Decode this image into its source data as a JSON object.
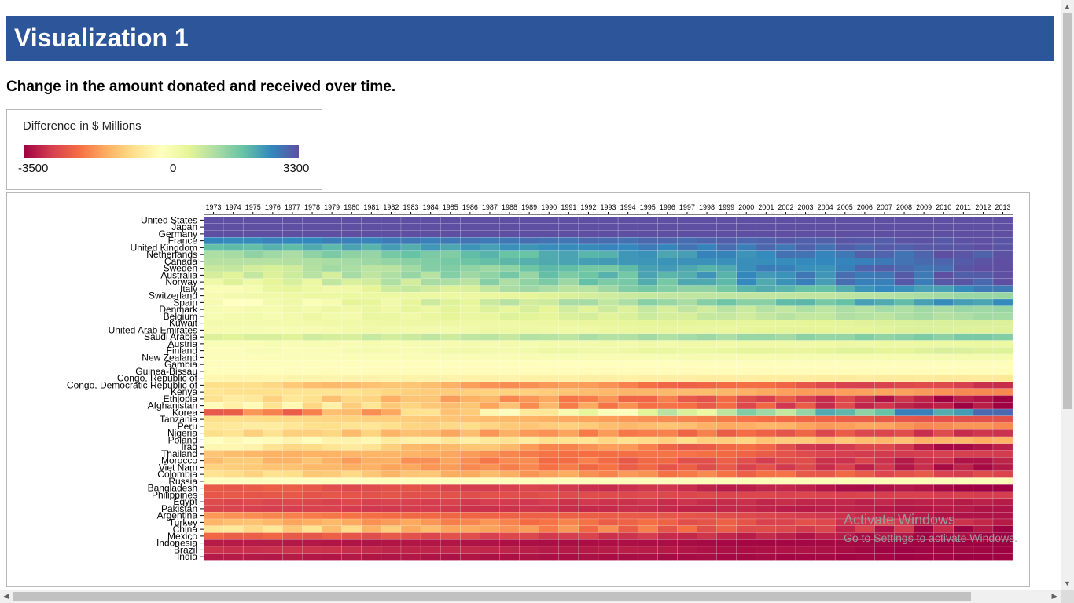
{
  "header": {
    "title": "Visualization 1"
  },
  "subtitle": "Change in the amount donated and received over time.",
  "legend": {
    "title": "Difference in $ Millions",
    "min_label": "-3500",
    "mid_label": "0",
    "max_label": "3300"
  },
  "colors": {
    "header_bg": "#2c5699",
    "scale": [
      "#9e0142",
      "#d53e4f",
      "#f46d43",
      "#fdae61",
      "#fee08b",
      "#ffffbf",
      "#e6f598",
      "#abdda4",
      "#66c2a5",
      "#3288bd",
      "#5e4fa2"
    ]
  },
  "watermark": {
    "line1": "Activate Windows",
    "line2": "Go to Settings to activate Windows."
  },
  "chart_data": {
    "type": "heatmap",
    "title": "",
    "xlabel": "",
    "ylabel": "",
    "value_range": [
      -3500,
      3300
    ],
    "x": [
      "1973",
      "1974",
      "1975",
      "1976",
      "1977",
      "1978",
      "1979",
      "1980",
      "1981",
      "1982",
      "1983",
      "1984",
      "1985",
      "1986",
      "1987",
      "1988",
      "1989",
      "1990",
      "1991",
      "1992",
      "1993",
      "1994",
      "1995",
      "1996",
      "1997",
      "1998",
      "1999",
      "2000",
      "2001",
      "2002",
      "2003",
      "2004",
      "2005",
      "2006",
      "2007",
      "2008",
      "2009",
      "2010",
      "2011",
      "2012",
      "2013"
    ],
    "y": [
      "United States",
      "Japan",
      "Germany",
      "France",
      "United Kingdom",
      "Netherlands",
      "Canada",
      "Sweden",
      "Australia",
      "Norway",
      "Italy",
      "Switzerland",
      "Spain",
      "Denmark",
      "Belgium",
      "Kuwait",
      "United Arab Emirates",
      "Saudi Arabia",
      "Austria",
      "Finland",
      "New Zealand",
      "Gambia",
      "Guinea-Bissau",
      "Congo, Republic of",
      "Congo, Democratic Republic of",
      "Kenya",
      "Ethiopia",
      "Afghanistan",
      "Korea",
      "Tanzania",
      "Peru",
      "Nigeria",
      "Poland",
      "Iraq",
      "Thailand",
      "Morocco",
      "Viet Nam",
      "Colombia",
      "Russia",
      "Bangladesh",
      "Philippines",
      "Egypt",
      "Pakistan",
      "Argentina",
      "Turkey",
      "China",
      "Mexico",
      "Indonesia",
      "Brazil",
      "India"
    ],
    "row_profiles": [
      {
        "country": "United States",
        "early": 3300,
        "late": 3300
      },
      {
        "country": "Japan",
        "early": 3300,
        "late": 3300
      },
      {
        "country": "Germany",
        "early": 3300,
        "late": 3300
      },
      {
        "country": "France",
        "early": 2600,
        "late": 3300
      },
      {
        "country": "United Kingdom",
        "early": 2000,
        "late": 3300
      },
      {
        "country": "Netherlands",
        "early": 1300,
        "late": 3300
      },
      {
        "country": "Canada",
        "early": 1200,
        "late": 3300
      },
      {
        "country": "Sweden",
        "early": 800,
        "late": 3300
      },
      {
        "country": "Australia",
        "early": 700,
        "late": 3300
      },
      {
        "country": "Norway",
        "early": 400,
        "late": 3300
      },
      {
        "country": "Italy",
        "early": 150,
        "late": 2800
      },
      {
        "country": "Switzerland",
        "early": 200,
        "late": 1500
      },
      {
        "country": "Spain",
        "early": 0,
        "late": 2600
      },
      {
        "country": "Denmark",
        "early": 200,
        "late": 1500
      },
      {
        "country": "Belgium",
        "early": 200,
        "late": 1400
      },
      {
        "country": "Kuwait",
        "early": 300,
        "late": 800
      },
      {
        "country": "United Arab Emirates",
        "early": 200,
        "late": 800
      },
      {
        "country": "Saudi Arabia",
        "early": 700,
        "late": 1800
      },
      {
        "country": "Austria",
        "early": 150,
        "late": 500
      },
      {
        "country": "Finland",
        "early": 100,
        "late": 800
      },
      {
        "country": "New Zealand",
        "early": 100,
        "late": 300
      },
      {
        "country": "Gambia",
        "early": -50,
        "late": -50
      },
      {
        "country": "Guinea-Bissau",
        "early": -50,
        "late": -100
      },
      {
        "country": "Congo, Republic of",
        "early": -200,
        "late": -500
      },
      {
        "country": "Congo, Democratic Republic of",
        "early": -700,
        "late": -3000
      },
      {
        "country": "Kenya",
        "early": -500,
        "late": -1800
      },
      {
        "country": "Ethiopia",
        "early": -400,
        "late": -3500
      },
      {
        "country": "Afghanistan",
        "early": -100,
        "late": -3500
      },
      {
        "country": "Korea",
        "early": -2400,
        "late": 3000
      },
      {
        "country": "Tanzania",
        "early": -700,
        "late": -2500
      },
      {
        "country": "Peru",
        "early": -400,
        "late": -1800
      },
      {
        "country": "Nigeria",
        "early": -600,
        "late": -3000
      },
      {
        "country": "Poland",
        "early": 0,
        "late": -1400
      },
      {
        "country": "Iraq",
        "early": -200,
        "late": -3400
      },
      {
        "country": "Thailand",
        "early": -1000,
        "late": -3000
      },
      {
        "country": "Morocco",
        "early": -1000,
        "late": -3300
      },
      {
        "country": "Viet Nam",
        "early": -900,
        "late": -3400
      },
      {
        "country": "Colombia",
        "early": -600,
        "late": -2800
      },
      {
        "country": "Russia",
        "early": 0,
        "late": -100
      },
      {
        "country": "Bangladesh",
        "early": -2300,
        "late": -3500
      },
      {
        "country": "Philippines",
        "early": -2400,
        "late": -2800
      },
      {
        "country": "Egypt",
        "early": -2600,
        "late": -3200
      },
      {
        "country": "Pakistan",
        "early": -2700,
        "late": -3300
      },
      {
        "country": "Argentina",
        "early": -1600,
        "late": -3300
      },
      {
        "country": "Turkey",
        "early": -1100,
        "late": -3200
      },
      {
        "country": "China",
        "early": -500,
        "late": -3500
      },
      {
        "country": "Mexico",
        "early": -2200,
        "late": -3500
      },
      {
        "country": "Indonesia",
        "early": -3200,
        "late": -3500
      },
      {
        "country": "Brazil",
        "early": -2900,
        "late": -3500
      },
      {
        "country": "India",
        "early": -3200,
        "late": -3500
      }
    ]
  }
}
